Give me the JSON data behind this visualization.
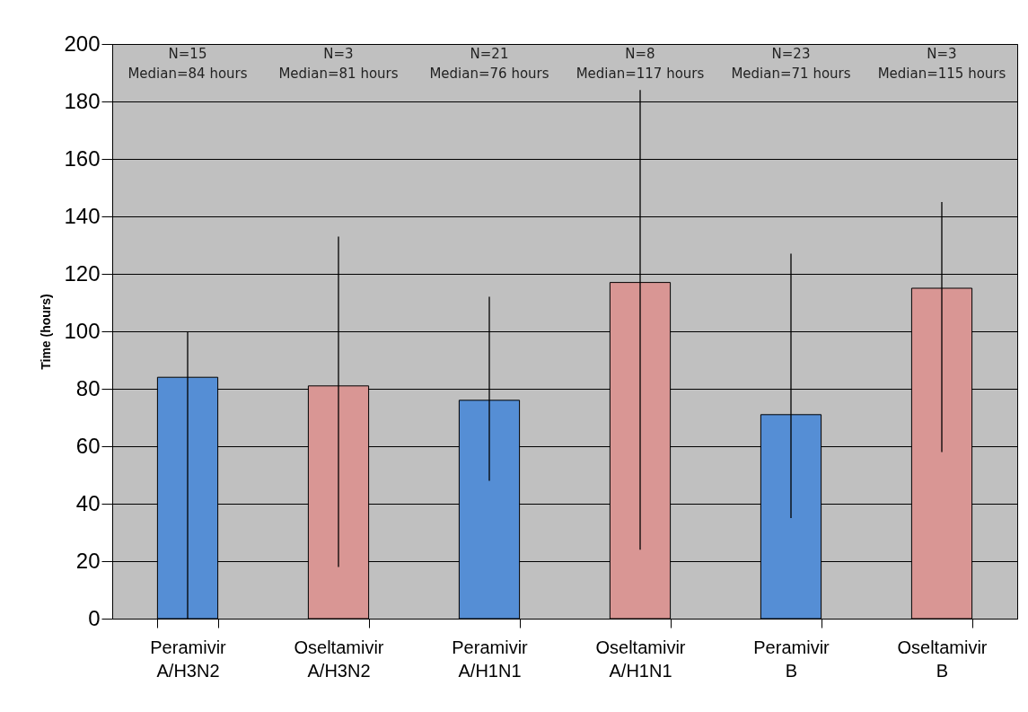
{
  "chart_data": {
    "type": "bar",
    "ylabel": "Time (hours)",
    "categories": [
      "Peramivir A/H3N2",
      "Oseltamivir A/H3N2",
      "Peramivir A/H1N1",
      "Oseltamivir A/H1N1",
      "Peramivir B",
      "Oseltamivir B"
    ],
    "values": [
      84,
      81,
      76,
      117,
      71,
      115
    ],
    "colors": [
      "#558ed5",
      "#d99694",
      "#558ed5",
      "#d99694",
      "#558ed5",
      "#d99694"
    ],
    "errors": [
      [
        0,
        100
      ],
      [
        18,
        133
      ],
      [
        48,
        112
      ],
      [
        24,
        184
      ],
      [
        35,
        127
      ],
      [
        58,
        145
      ]
    ],
    "ylim": [
      0,
      200
    ],
    "yticks": [
      0,
      20,
      40,
      60,
      80,
      100,
      120,
      140,
      160,
      180,
      200
    ],
    "grid": "y",
    "annotations": [
      "N=15\nMedian=84 hours",
      "N=3\nMedian=81 hours",
      "N=21\nMedian=76 hours",
      "N=8\nMedian=117 hours",
      "N=23\nMedian=71 hours",
      "N=3\nMedian=115 hours"
    ]
  }
}
